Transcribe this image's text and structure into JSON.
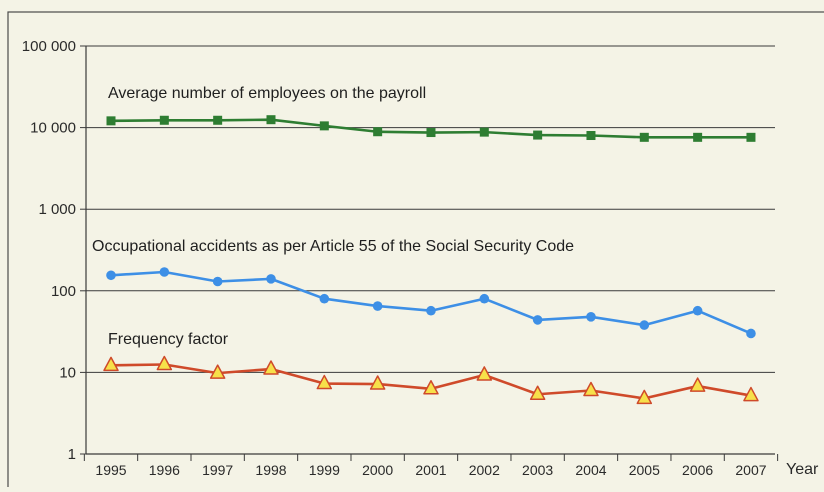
{
  "chart_data": {
    "type": "line",
    "scale": "log",
    "ylim": [
      1,
      100000
    ],
    "grid": true,
    "y_ticks": [
      {
        "value": 1,
        "label": "1"
      },
      {
        "value": 10,
        "label": "10"
      },
      {
        "value": 100,
        "label": "100"
      },
      {
        "value": 1000,
        "label": "1 000"
      },
      {
        "value": 10000,
        "label": "10 000"
      },
      {
        "value": 100000,
        "label": "100 000"
      }
    ],
    "xlabel": "Year",
    "categories": [
      "1995",
      "1996",
      "1997",
      "1998",
      "1999",
      "2000",
      "2001",
      "2002",
      "2003",
      "2004",
      "2005",
      "2006",
      "2007"
    ],
    "series": [
      {
        "name": "Average number of employees on the payroll",
        "color": "#2e7d32",
        "marker": "square",
        "values": [
          12100,
          12300,
          12300,
          12500,
          10500,
          8900,
          8700,
          8800,
          8100,
          8000,
          7600,
          7600,
          7600
        ]
      },
      {
        "name": "Occupational accidents as per Article 55 of the Social Security Code",
        "color": "#3d8fe6",
        "marker": "circle",
        "values": [
          155,
          170,
          130,
          140,
          80,
          65,
          57,
          80,
          44,
          48,
          38,
          57,
          30
        ]
      },
      {
        "name": "Frequency factor",
        "color": "#cf4a2a",
        "marker": "triangle",
        "marker_fill": "#f7e04a",
        "values": [
          12.2,
          12.5,
          9.8,
          11.0,
          7.3,
          7.2,
          6.3,
          9.3,
          5.4,
          6.0,
          4.8,
          6.8,
          5.2
        ]
      }
    ]
  }
}
